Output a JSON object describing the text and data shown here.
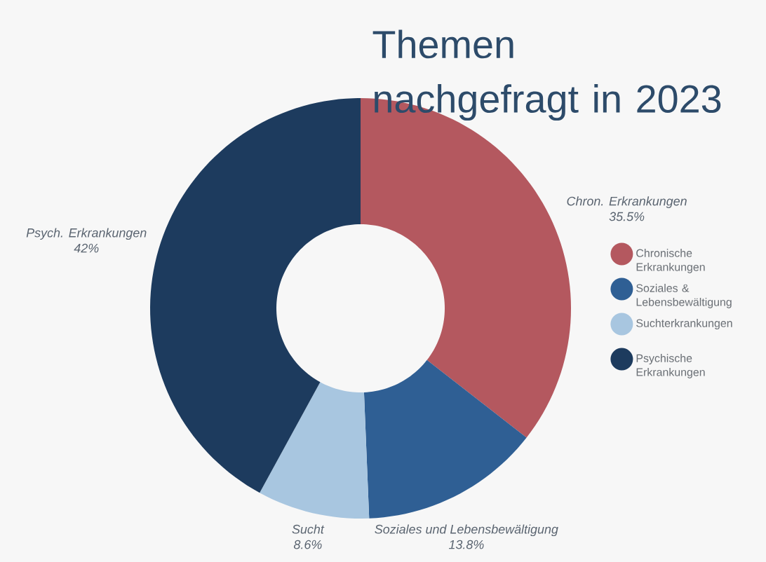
{
  "chart_data": {
    "type": "donut",
    "title": "Themen nachgefragt in 2023",
    "categories": [
      "Chronische Erkrankungen",
      "Soziales & Lebensbewältigung",
      "Suchterkrankungen",
      "Psychische Erkrankungen"
    ],
    "values": [
      35.5,
      13.8,
      8.6,
      42
    ],
    "colors": [
      "#b4585f",
      "#2f5f94",
      "#a8c6e0",
      "#1d3b5e"
    ],
    "value_labels": [
      "35.5%",
      "13.8%",
      "8.6%",
      "42%"
    ],
    "annotations": [
      "Chron. Erkrankungen",
      "Soziales und Lebensbewältigung",
      "Sucht",
      "Psych. Erkrankungen"
    ],
    "legend": "right"
  }
}
